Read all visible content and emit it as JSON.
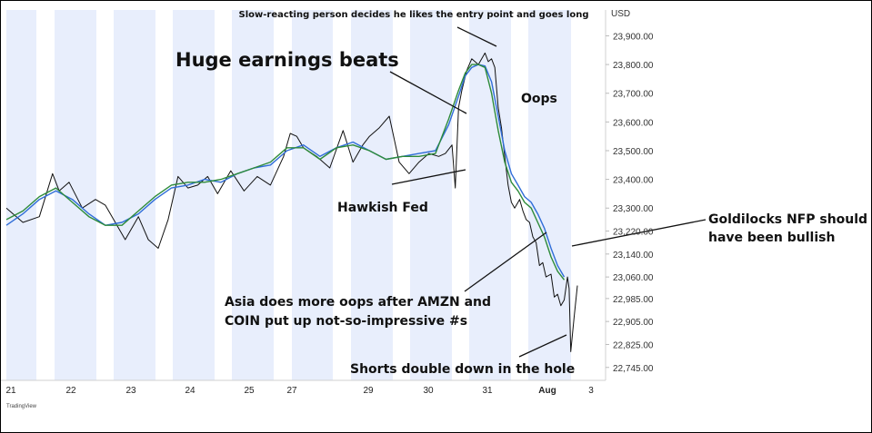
{
  "chart_data": {
    "type": "line",
    "currency_label": "USD",
    "watermark": "TradingView",
    "ylim": [
      22700,
      23990
    ],
    "y_ticks": [
      "23,900.00",
      "23,800.00",
      "23,700.00",
      "23,600.00",
      "23,500.00",
      "23,400.00",
      "23,300.00",
      "23,220.00",
      "23,140.00",
      "23,060.00",
      "22,985.00",
      "22,905.00",
      "22,825.00",
      "22,745.00"
    ],
    "x_ticks": [
      "21",
      "22",
      "23",
      "24",
      "25",
      "27",
      "29",
      "30",
      "31",
      "Aug",
      "3"
    ],
    "series": [
      {
        "color": "#111111",
        "x": [
          0,
          0.5,
          1,
          1.4,
          1.6,
          1.9,
          2.3,
          2.7,
          3.0,
          3.3,
          3.6,
          4.0,
          4.3,
          4.6,
          4.9,
          5.2,
          5.5,
          5.8,
          6.1,
          6.4,
          6.8,
          7.2,
          7.6,
          8.0,
          8.4,
          8.6,
          8.8,
          9.0,
          9.4,
          9.8,
          10.2,
          10.5,
          10.8,
          11.0,
          11.3,
          11.6,
          11.9,
          12.2,
          12.5,
          12.8,
          13.1,
          13.3,
          13.5,
          13.6,
          13.7,
          13.8,
          13.95,
          14.1,
          14.3,
          14.5,
          14.6,
          14.7,
          14.8,
          14.9,
          15.0,
          15.1,
          15.2,
          15.3,
          15.4,
          15.55,
          15.65,
          15.75,
          15.85,
          15.95,
          16.05,
          16.15,
          16.25,
          16.35,
          16.5,
          16.6,
          16.7,
          16.8,
          16.9,
          17.0,
          17.05,
          17.1,
          17.2,
          17.3
        ],
        "y": [
          23300,
          23250,
          23270,
          23420,
          23360,
          23390,
          23300,
          23330,
          23310,
          23250,
          23190,
          23270,
          23190,
          23160,
          23260,
          23410,
          23370,
          23380,
          23410,
          23350,
          23430,
          23360,
          23410,
          23380,
          23480,
          23560,
          23550,
          23510,
          23480,
          23440,
          23570,
          23460,
          23520,
          23550,
          23580,
          23620,
          23460,
          23420,
          23460,
          23490,
          23480,
          23490,
          23520,
          23370,
          23650,
          23710,
          23780,
          23820,
          23800,
          23840,
          23810,
          23820,
          23790,
          23650,
          23580,
          23480,
          23380,
          23320,
          23300,
          23330,
          23290,
          23260,
          23250,
          23200,
          23180,
          23100,
          23110,
          23060,
          23070,
          22990,
          23000,
          22960,
          22980,
          23060,
          23020,
          22800,
          22920,
          23030
        ]
      },
      {
        "color": "#2f6dd8",
        "x": [
          0,
          0.5,
          1,
          1.5,
          2,
          2.5,
          3,
          3.5,
          4,
          4.5,
          5,
          5.5,
          6,
          6.5,
          7,
          7.5,
          8,
          8.5,
          9,
          9.5,
          10,
          10.5,
          11,
          11.5,
          12,
          12.5,
          13,
          13.4,
          13.7,
          13.9,
          14.1,
          14.3,
          14.5,
          14.7,
          14.9,
          15.1,
          15.3,
          15.5,
          15.7,
          15.9,
          16.1,
          16.3,
          16.5,
          16.7,
          16.9
        ],
        "y": [
          23240,
          23280,
          23330,
          23360,
          23330,
          23280,
          23240,
          23250,
          23280,
          23330,
          23370,
          23380,
          23400,
          23390,
          23420,
          23440,
          23450,
          23500,
          23520,
          23480,
          23510,
          23530,
          23500,
          23470,
          23480,
          23490,
          23500,
          23590,
          23690,
          23760,
          23790,
          23800,
          23795,
          23740,
          23620,
          23500,
          23420,
          23380,
          23340,
          23320,
          23280,
          23230,
          23160,
          23100,
          23060
        ]
      },
      {
        "color": "#2e8b3a",
        "x": [
          0,
          0.5,
          1,
          1.5,
          2,
          2.5,
          3,
          3.5,
          4,
          4.5,
          5,
          5.5,
          6,
          6.5,
          7,
          7.5,
          8,
          8.5,
          9,
          9.5,
          10,
          10.5,
          11,
          11.5,
          12,
          12.5,
          13,
          13.4,
          13.7,
          13.9,
          14.1,
          14.3,
          14.5,
          14.7,
          14.9,
          15.1,
          15.3,
          15.5,
          15.7,
          15.9,
          16.1,
          16.3,
          16.5,
          16.7,
          16.9
        ],
        "y": [
          23260,
          23290,
          23340,
          23370,
          23320,
          23270,
          23240,
          23240,
          23290,
          23340,
          23380,
          23390,
          23390,
          23400,
          23420,
          23440,
          23460,
          23510,
          23510,
          23470,
          23510,
          23520,
          23500,
          23470,
          23480,
          23480,
          23490,
          23610,
          23710,
          23770,
          23800,
          23800,
          23790,
          23700,
          23570,
          23460,
          23390,
          23360,
          23320,
          23300,
          23250,
          23200,
          23130,
          23080,
          23050
        ]
      }
    ],
    "annotations": [
      "Slow-reacting person decides he likes the entry point and goes long",
      "Huge earnings beats",
      "Oops",
      "Hawkish Fed",
      "Goldilocks NFP should",
      "have been bullish",
      "Asia does more oops after AMZN and",
      "COIN put up not-so-impressive #s",
      "Shorts double down in the hole"
    ]
  }
}
